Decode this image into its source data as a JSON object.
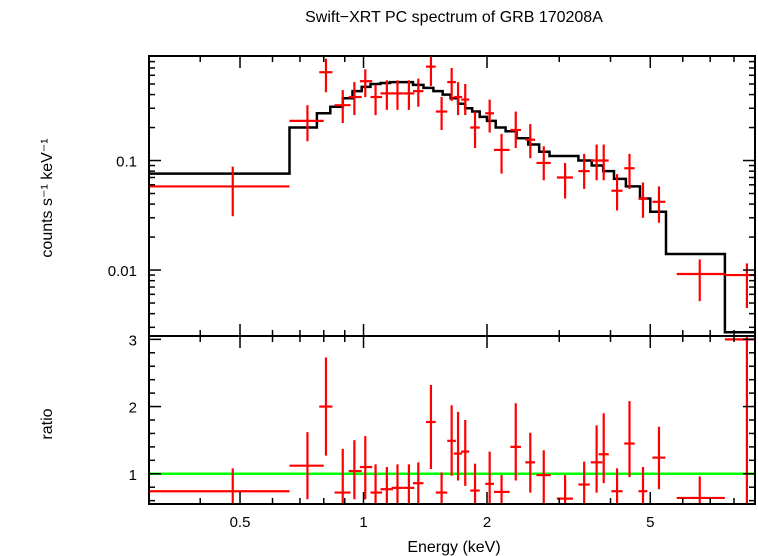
{
  "chart_data": {
    "type": "scatter",
    "title": "Swift−XRT PC spectrum of GRB 170208A",
    "xlabel": "Energy (keV)",
    "x_scale": "log",
    "xlim": [
      0.3,
      9.0
    ],
    "x_ticks": [
      {
        "v": 0.5,
        "label": "0.5"
      },
      {
        "v": 1,
        "label": "1"
      },
      {
        "v": 2,
        "label": "2"
      },
      {
        "v": 5,
        "label": "5"
      }
    ],
    "upper_panel": {
      "ylabel": "counts s⁻¹ keV⁻¹",
      "y_scale": "log",
      "ylim": [
        0.0025,
        0.9
      ],
      "y_ticks": [
        {
          "v": 0.01,
          "label": "0.01"
        },
        {
          "v": 0.1,
          "label": "0.1"
        }
      ],
      "data_color": "#ff0000",
      "model_color": "#000000",
      "data": [
        {
          "x": 0.48,
          "xlo": 0.3,
          "xhi": 0.66,
          "y": 0.058,
          "ylo": 0.031,
          "yhi": 0.088
        },
        {
          "x": 0.73,
          "xlo": 0.66,
          "xhi": 0.8,
          "y": 0.23,
          "ylo": 0.15,
          "yhi": 0.32
        },
        {
          "x": 0.81,
          "xlo": 0.78,
          "xhi": 0.84,
          "y": 0.64,
          "ylo": 0.42,
          "yhi": 0.85
        },
        {
          "x": 0.89,
          "xlo": 0.85,
          "xhi": 0.93,
          "y": 0.32,
          "ylo": 0.22,
          "yhi": 0.44
        },
        {
          "x": 0.95,
          "xlo": 0.92,
          "xhi": 0.99,
          "y": 0.38,
          "ylo": 0.26,
          "yhi": 0.52
        },
        {
          "x": 1.01,
          "xlo": 0.98,
          "xhi": 1.05,
          "y": 0.53,
          "ylo": 0.38,
          "yhi": 0.68
        },
        {
          "x": 1.07,
          "xlo": 1.04,
          "xhi": 1.11,
          "y": 0.38,
          "ylo": 0.26,
          "yhi": 0.49
        },
        {
          "x": 1.14,
          "xlo": 1.1,
          "xhi": 1.18,
          "y": 0.41,
          "ylo": 0.29,
          "yhi": 0.54
        },
        {
          "x": 1.21,
          "xlo": 1.17,
          "xhi": 1.25,
          "y": 0.41,
          "ylo": 0.29,
          "yhi": 0.54
        },
        {
          "x": 1.29,
          "xlo": 1.25,
          "xhi": 1.33,
          "y": 0.41,
          "ylo": 0.29,
          "yhi": 0.54
        },
        {
          "x": 1.36,
          "xlo": 1.32,
          "xhi": 1.4,
          "y": 0.43,
          "ylo": 0.31,
          "yhi": 0.56
        },
        {
          "x": 1.46,
          "xlo": 1.42,
          "xhi": 1.5,
          "y": 0.72,
          "ylo": 0.48,
          "yhi": 0.9
        },
        {
          "x": 1.55,
          "xlo": 1.5,
          "xhi": 1.6,
          "y": 0.28,
          "ylo": 0.19,
          "yhi": 0.38
        },
        {
          "x": 1.64,
          "xlo": 1.6,
          "xhi": 1.68,
          "y": 0.52,
          "ylo": 0.35,
          "yhi": 0.7
        },
        {
          "x": 1.7,
          "xlo": 1.66,
          "xhi": 1.74,
          "y": 0.38,
          "ylo": 0.26,
          "yhi": 0.52
        },
        {
          "x": 1.77,
          "xlo": 1.73,
          "xhi": 1.81,
          "y": 0.36,
          "ylo": 0.26,
          "yhi": 0.5
        },
        {
          "x": 1.87,
          "xlo": 1.82,
          "xhi": 1.92,
          "y": 0.2,
          "ylo": 0.13,
          "yhi": 0.28
        },
        {
          "x": 2.03,
          "xlo": 1.98,
          "xhi": 2.08,
          "y": 0.27,
          "ylo": 0.18,
          "yhi": 0.36
        },
        {
          "x": 2.17,
          "xlo": 2.08,
          "xhi": 2.27,
          "y": 0.125,
          "ylo": 0.076,
          "yhi": 0.175
        },
        {
          "x": 2.35,
          "xlo": 2.28,
          "xhi": 2.42,
          "y": 0.19,
          "ylo": 0.13,
          "yhi": 0.28
        },
        {
          "x": 2.55,
          "xlo": 2.48,
          "xhi": 2.62,
          "y": 0.155,
          "ylo": 0.105,
          "yhi": 0.215
        },
        {
          "x": 2.75,
          "xlo": 2.64,
          "xhi": 2.86,
          "y": 0.095,
          "ylo": 0.066,
          "yhi": 0.135
        },
        {
          "x": 3.1,
          "xlo": 2.96,
          "xhi": 3.24,
          "y": 0.07,
          "ylo": 0.045,
          "yhi": 0.095
        },
        {
          "x": 3.45,
          "xlo": 3.34,
          "xhi": 3.56,
          "y": 0.08,
          "ylo": 0.055,
          "yhi": 0.115
        },
        {
          "x": 3.7,
          "xlo": 3.58,
          "xhi": 3.82,
          "y": 0.1,
          "ylo": 0.066,
          "yhi": 0.14
        },
        {
          "x": 3.85,
          "xlo": 3.74,
          "xhi": 3.96,
          "y": 0.1,
          "ylo": 0.066,
          "yhi": 0.14
        },
        {
          "x": 4.15,
          "xlo": 4.02,
          "xhi": 4.28,
          "y": 0.053,
          "ylo": 0.035,
          "yhi": 0.075
        },
        {
          "x": 4.45,
          "xlo": 4.32,
          "xhi": 4.58,
          "y": 0.085,
          "ylo": 0.055,
          "yhi": 0.115
        },
        {
          "x": 4.8,
          "xlo": 4.68,
          "xhi": 4.92,
          "y": 0.045,
          "ylo": 0.03,
          "yhi": 0.063
        },
        {
          "x": 5.25,
          "xlo": 5.06,
          "xhi": 5.44,
          "y": 0.042,
          "ylo": 0.027,
          "yhi": 0.058
        },
        {
          "x": 6.6,
          "xlo": 5.8,
          "xhi": 7.6,
          "y": 0.0092,
          "ylo": 0.0052,
          "yhi": 0.0125
        },
        {
          "x": 8.6,
          "xlo": 7.6,
          "xhi": 9.0,
          "y": 0.009,
          "ylo": 0.0045,
          "yhi": 0.0115
        }
      ],
      "model_step": [
        {
          "x0": 0.3,
          "x1": 0.66,
          "y": 0.076
        },
        {
          "x0": 0.66,
          "x1": 0.77,
          "y": 0.2
        },
        {
          "x0": 0.77,
          "x1": 0.83,
          "y": 0.27
        },
        {
          "x0": 0.83,
          "x1": 0.89,
          "y": 0.31
        },
        {
          "x0": 0.89,
          "x1": 0.94,
          "y": 0.37
        },
        {
          "x0": 0.94,
          "x1": 0.99,
          "y": 0.43
        },
        {
          "x0": 0.99,
          "x1": 1.04,
          "y": 0.47
        },
        {
          "x0": 1.04,
          "x1": 1.1,
          "y": 0.5
        },
        {
          "x0": 1.1,
          "x1": 1.16,
          "y": 0.51
        },
        {
          "x0": 1.16,
          "x1": 1.24,
          "y": 0.52
        },
        {
          "x0": 1.24,
          "x1": 1.32,
          "y": 0.52
        },
        {
          "x0": 1.32,
          "x1": 1.4,
          "y": 0.49
        },
        {
          "x0": 1.4,
          "x1": 1.48,
          "y": 0.46
        },
        {
          "x0": 1.48,
          "x1": 1.56,
          "y": 0.43
        },
        {
          "x0": 1.56,
          "x1": 1.63,
          "y": 0.4
        },
        {
          "x0": 1.63,
          "x1": 1.7,
          "y": 0.37
        },
        {
          "x0": 1.7,
          "x1": 1.77,
          "y": 0.33
        },
        {
          "x0": 1.77,
          "x1": 1.84,
          "y": 0.3
        },
        {
          "x0": 1.84,
          "x1": 1.92,
          "y": 0.28
        },
        {
          "x0": 1.92,
          "x1": 2.0,
          "y": 0.25
        },
        {
          "x0": 2.0,
          "x1": 2.1,
          "y": 0.23
        },
        {
          "x0": 2.1,
          "x1": 2.22,
          "y": 0.2
        },
        {
          "x0": 2.22,
          "x1": 2.36,
          "y": 0.185
        },
        {
          "x0": 2.36,
          "x1": 2.52,
          "y": 0.16
        },
        {
          "x0": 2.52,
          "x1": 2.68,
          "y": 0.14
        },
        {
          "x0": 2.68,
          "x1": 2.84,
          "y": 0.12
        },
        {
          "x0": 2.84,
          "x1": 3.04,
          "y": 0.11
        },
        {
          "x0": 3.04,
          "x1": 3.34,
          "y": 0.11
        },
        {
          "x0": 3.34,
          "x1": 3.6,
          "y": 0.1
        },
        {
          "x0": 3.6,
          "x1": 3.84,
          "y": 0.09
        },
        {
          "x0": 3.84,
          "x1": 4.08,
          "y": 0.08
        },
        {
          "x0": 4.08,
          "x1": 4.36,
          "y": 0.068
        },
        {
          "x0": 4.36,
          "x1": 4.72,
          "y": 0.058
        },
        {
          "x0": 4.72,
          "x1": 5.0,
          "y": 0.045
        },
        {
          "x0": 5.0,
          "x1": 5.46,
          "y": 0.034
        },
        {
          "x0": 5.46,
          "x1": 7.6,
          "y": 0.014
        },
        {
          "x0": 7.6,
          "x1": 8.1,
          "y": 0.0027
        },
        {
          "x0": 8.1,
          "x1": 9.0,
          "y": 0.0027
        }
      ]
    },
    "lower_panel": {
      "ylabel": "ratio",
      "y_scale": "linear",
      "ylim": [
        0.55,
        3.05
      ],
      "y_ticks": [
        {
          "v": 1,
          "label": "1"
        },
        {
          "v": 2,
          "label": "2"
        },
        {
          "v": 3,
          "label": "3"
        }
      ],
      "reference_line": 1,
      "reference_color": "#00ff00",
      "data_color": "#ff0000",
      "data": [
        {
          "x": 0.48,
          "xlo": 0.3,
          "xhi": 0.66,
          "y": 0.74,
          "ylo": 0.56,
          "yhi": 1.08
        },
        {
          "x": 0.73,
          "xlo": 0.66,
          "xhi": 0.8,
          "y": 1.12,
          "ylo": 0.62,
          "yhi": 1.62
        },
        {
          "x": 0.81,
          "xlo": 0.78,
          "xhi": 0.84,
          "y": 2.0,
          "ylo": 1.27,
          "yhi": 2.73
        },
        {
          "x": 0.89,
          "xlo": 0.85,
          "xhi": 0.93,
          "y": 0.72,
          "ylo": 0.56,
          "yhi": 1.37
        },
        {
          "x": 0.95,
          "xlo": 0.92,
          "xhi": 0.99,
          "y": 1.04,
          "ylo": 0.62,
          "yhi": 1.5
        },
        {
          "x": 1.01,
          "xlo": 0.98,
          "xhi": 1.05,
          "y": 1.1,
          "ylo": 0.62,
          "yhi": 1.56
        },
        {
          "x": 1.07,
          "xlo": 1.04,
          "xhi": 1.11,
          "y": 0.72,
          "ylo": 0.56,
          "yhi": 1.14
        },
        {
          "x": 1.14,
          "xlo": 1.1,
          "xhi": 1.18,
          "y": 0.77,
          "ylo": 0.56,
          "yhi": 1.1
        },
        {
          "x": 1.21,
          "xlo": 1.17,
          "xhi": 1.25,
          "y": 0.79,
          "ylo": 0.56,
          "yhi": 1.14
        },
        {
          "x": 1.29,
          "xlo": 1.25,
          "xhi": 1.33,
          "y": 0.79,
          "ylo": 0.56,
          "yhi": 1.14
        },
        {
          "x": 1.36,
          "xlo": 1.32,
          "xhi": 1.4,
          "y": 0.86,
          "ylo": 0.56,
          "yhi": 1.17
        },
        {
          "x": 1.46,
          "xlo": 1.42,
          "xhi": 1.5,
          "y": 1.77,
          "ylo": 1.07,
          "yhi": 2.32
        },
        {
          "x": 1.55,
          "xlo": 1.5,
          "xhi": 1.6,
          "y": 0.72,
          "ylo": 0.56,
          "yhi": 1.02
        },
        {
          "x": 1.64,
          "xlo": 1.6,
          "xhi": 1.68,
          "y": 1.49,
          "ylo": 0.97,
          "yhi": 2.02
        },
        {
          "x": 1.7,
          "xlo": 1.66,
          "xhi": 1.74,
          "y": 1.3,
          "ylo": 0.9,
          "yhi": 1.92
        },
        {
          "x": 1.77,
          "xlo": 1.73,
          "xhi": 1.81,
          "y": 1.33,
          "ylo": 0.82,
          "yhi": 1.8
        },
        {
          "x": 1.87,
          "xlo": 1.82,
          "xhi": 1.92,
          "y": 0.75,
          "ylo": 0.56,
          "yhi": 1.15
        },
        {
          "x": 2.03,
          "xlo": 1.98,
          "xhi": 2.08,
          "y": 0.85,
          "ylo": 0.56,
          "yhi": 1.33
        },
        {
          "x": 2.17,
          "xlo": 2.08,
          "xhi": 2.27,
          "y": 0.73,
          "ylo": 0.56,
          "yhi": 0.98
        },
        {
          "x": 2.35,
          "xlo": 2.28,
          "xhi": 2.42,
          "y": 1.4,
          "ylo": 0.9,
          "yhi": 2.05
        },
        {
          "x": 2.55,
          "xlo": 2.48,
          "xhi": 2.62,
          "y": 1.17,
          "ylo": 0.72,
          "yhi": 1.61
        },
        {
          "x": 2.75,
          "xlo": 2.64,
          "xhi": 2.86,
          "y": 0.98,
          "ylo": 0.56,
          "yhi": 1.35
        },
        {
          "x": 3.1,
          "xlo": 2.96,
          "xhi": 3.24,
          "y": 0.63,
          "ylo": 0.56,
          "yhi": 0.98
        },
        {
          "x": 3.45,
          "xlo": 3.34,
          "xhi": 3.56,
          "y": 0.84,
          "ylo": 0.56,
          "yhi": 1.18
        },
        {
          "x": 3.7,
          "xlo": 3.58,
          "xhi": 3.82,
          "y": 1.17,
          "ylo": 0.72,
          "yhi": 1.72
        },
        {
          "x": 3.85,
          "xlo": 3.74,
          "xhi": 3.96,
          "y": 1.29,
          "ylo": 0.86,
          "yhi": 1.9
        },
        {
          "x": 4.15,
          "xlo": 4.02,
          "xhi": 4.28,
          "y": 0.74,
          "ylo": 0.56,
          "yhi": 1.08
        },
        {
          "x": 4.45,
          "xlo": 4.32,
          "xhi": 4.58,
          "y": 1.45,
          "ylo": 0.95,
          "yhi": 2.08
        },
        {
          "x": 4.8,
          "xlo": 4.68,
          "xhi": 4.92,
          "y": 0.74,
          "ylo": 0.56,
          "yhi": 1.1
        },
        {
          "x": 5.25,
          "xlo": 5.06,
          "xhi": 5.44,
          "y": 1.24,
          "ylo": 0.77,
          "yhi": 1.7
        },
        {
          "x": 6.6,
          "xlo": 5.8,
          "xhi": 7.6,
          "y": 0.64,
          "ylo": 0.56,
          "yhi": 0.96
        },
        {
          "x": 8.6,
          "xlo": 7.6,
          "xhi": 9.0,
          "y": 3.0,
          "ylo": 0.56,
          "yhi": 3.05
        }
      ]
    }
  }
}
